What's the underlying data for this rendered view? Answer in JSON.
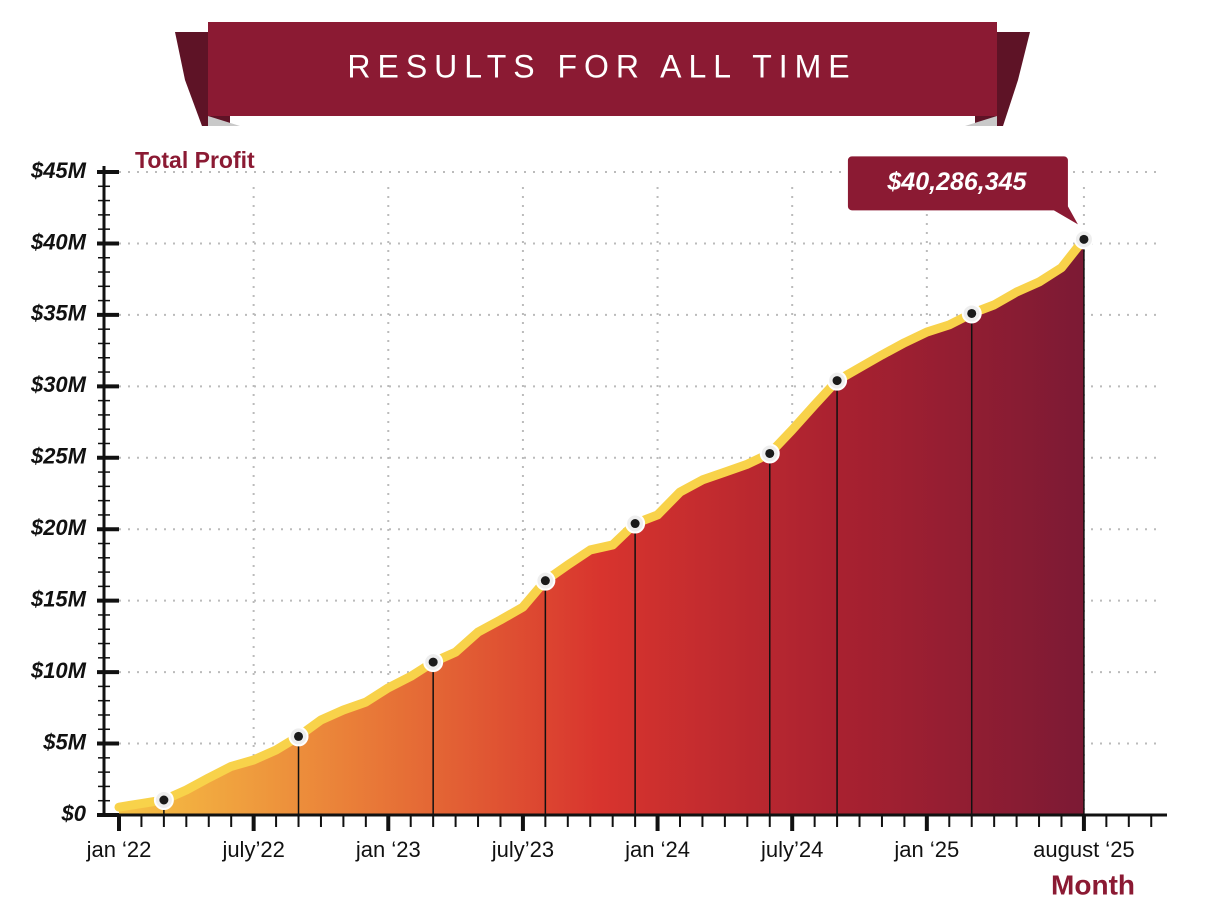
{
  "chart_data": {
    "type": "area",
    "title": "RESULTS FOR ALL TIME",
    "y_label": "Total Profit",
    "x_label": "Month",
    "categories": [
      "jan ‘22",
      null,
      null,
      null,
      null,
      null,
      "july’22",
      null,
      null,
      null,
      null,
      null,
      "jan ‘23",
      null,
      null,
      null,
      null,
      null,
      "july’23",
      null,
      null,
      null,
      null,
      null,
      "jan ‘24",
      null,
      null,
      null,
      null,
      null,
      "july’24",
      null,
      null,
      null,
      null,
      null,
      "jan ‘25",
      null,
      null,
      null,
      null,
      null,
      null,
      "august ‘25",
      null,
      null,
      null
    ],
    "series": [
      {
        "name": "Total Profit",
        "color": "#f8d24a",
        "values": [
          0.55,
          0.8,
          1.05,
          1.75,
          2.6,
          3.4,
          3.85,
          4.55,
          5.5,
          6.65,
          7.35,
          7.9,
          8.9,
          9.7,
          10.7,
          11.4,
          12.8,
          13.65,
          14.55,
          16.4,
          17.5,
          18.55,
          18.9,
          20.4,
          21.0,
          22.6,
          23.45,
          24.0,
          24.55,
          25.3,
          26.95,
          28.7,
          30.4,
          31.3,
          32.2,
          33.05,
          33.8,
          34.3,
          35.1,
          35.7,
          36.6,
          37.3,
          38.3,
          40.286345,
          null,
          null,
          null
        ],
        "value_labels": [
          null,
          null,
          null,
          null,
          null,
          null,
          null,
          null,
          null,
          null,
          null,
          null,
          null,
          null,
          null,
          null,
          null,
          null,
          null,
          null,
          null,
          null,
          null,
          null,
          null,
          null,
          null,
          null,
          null,
          null,
          null,
          null,
          null,
          null,
          null,
          null,
          null,
          null,
          null,
          null,
          null,
          null,
          null,
          "$40,286,345",
          null,
          null,
          null
        ],
        "markers": [
          2,
          8,
          14,
          19,
          23,
          29,
          32,
          38,
          43
        ]
      }
    ],
    "fill_gradient": [
      "#f6c244",
      "#e97c38",
      "#d8342e",
      "#a82130",
      "#7c1a34"
    ],
    "ylim": [
      0,
      45
    ],
    "yticks": [
      {
        "value": 0,
        "label": "$0"
      },
      {
        "value": 5,
        "label": "$5M"
      },
      {
        "value": 10,
        "label": "$10M"
      },
      {
        "value": 15,
        "label": "$15M"
      },
      {
        "value": 20,
        "label": "$20M"
      },
      {
        "value": 25,
        "label": "$25M"
      },
      {
        "value": 30,
        "label": "$30M"
      },
      {
        "value": 35,
        "label": "$35M"
      },
      {
        "value": 40,
        "label": "$40M"
      },
      {
        "value": 45,
        "label": "$45M"
      }
    ],
    "grid": true
  }
}
